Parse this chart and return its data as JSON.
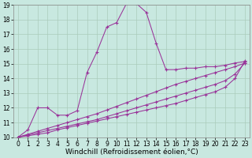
{
  "xlabel": "Windchill (Refroidissement éolien,°C)",
  "xlim": [
    -0.5,
    23.5
  ],
  "ylim": [
    10,
    19
  ],
  "xticks": [
    0,
    1,
    2,
    3,
    4,
    5,
    6,
    7,
    8,
    9,
    10,
    11,
    12,
    13,
    14,
    15,
    16,
    17,
    18,
    19,
    20,
    21,
    22,
    23
  ],
  "yticks": [
    10,
    11,
    12,
    13,
    14,
    15,
    16,
    17,
    18,
    19
  ],
  "background_color": "#c8e8e0",
  "grid_color": "#aaccbb",
  "line_color": "#993399",
  "line1_x": [
    0,
    1,
    2,
    3,
    4,
    5,
    6,
    7,
    8,
    9,
    10,
    11,
    12,
    13,
    14,
    15,
    16,
    17,
    18,
    19,
    20,
    21,
    22,
    23
  ],
  "line1_y": [
    10.0,
    10.5,
    12.0,
    12.0,
    11.5,
    11.5,
    11.8,
    14.4,
    15.8,
    17.5,
    17.8,
    19.1,
    19.1,
    18.5,
    16.4,
    14.6,
    14.6,
    14.7,
    14.7,
    14.8,
    14.8,
    14.9,
    15.05,
    15.15
  ],
  "line2_x": [
    0,
    1,
    2,
    3,
    4,
    5,
    6,
    7,
    8,
    9,
    10,
    11,
    12,
    13,
    14,
    15,
    16,
    17,
    18,
    19,
    20,
    21,
    22,
    23
  ],
  "line2_y": [
    10.0,
    10.2,
    10.4,
    10.6,
    10.8,
    11.0,
    11.2,
    11.4,
    11.6,
    11.85,
    12.1,
    12.35,
    12.6,
    12.85,
    13.1,
    13.35,
    13.6,
    13.8,
    14.0,
    14.2,
    14.4,
    14.6,
    14.8,
    15.05
  ],
  "line3_x": [
    0,
    1,
    2,
    3,
    4,
    5,
    6,
    7,
    8,
    9,
    10,
    11,
    12,
    13,
    14,
    15,
    16,
    17,
    18,
    19,
    20,
    21,
    22,
    23
  ],
  "line3_y": [
    10.0,
    10.15,
    10.3,
    10.45,
    10.6,
    10.75,
    10.9,
    11.05,
    11.2,
    11.4,
    11.6,
    11.8,
    12.0,
    12.2,
    12.4,
    12.6,
    12.8,
    13.0,
    13.2,
    13.4,
    13.6,
    13.85,
    14.3,
    15.05
  ],
  "line4_x": [
    0,
    1,
    2,
    3,
    4,
    5,
    6,
    7,
    8,
    9,
    10,
    11,
    12,
    13,
    14,
    15,
    16,
    17,
    18,
    19,
    20,
    21,
    22,
    23
  ],
  "line4_y": [
    10.0,
    10.1,
    10.2,
    10.3,
    10.5,
    10.65,
    10.8,
    10.95,
    11.1,
    11.25,
    11.4,
    11.55,
    11.7,
    11.85,
    12.0,
    12.15,
    12.3,
    12.5,
    12.7,
    12.9,
    13.1,
    13.4,
    14.0,
    15.2
  ],
  "tick_fontsize": 5.5,
  "xlabel_fontsize": 6.5
}
